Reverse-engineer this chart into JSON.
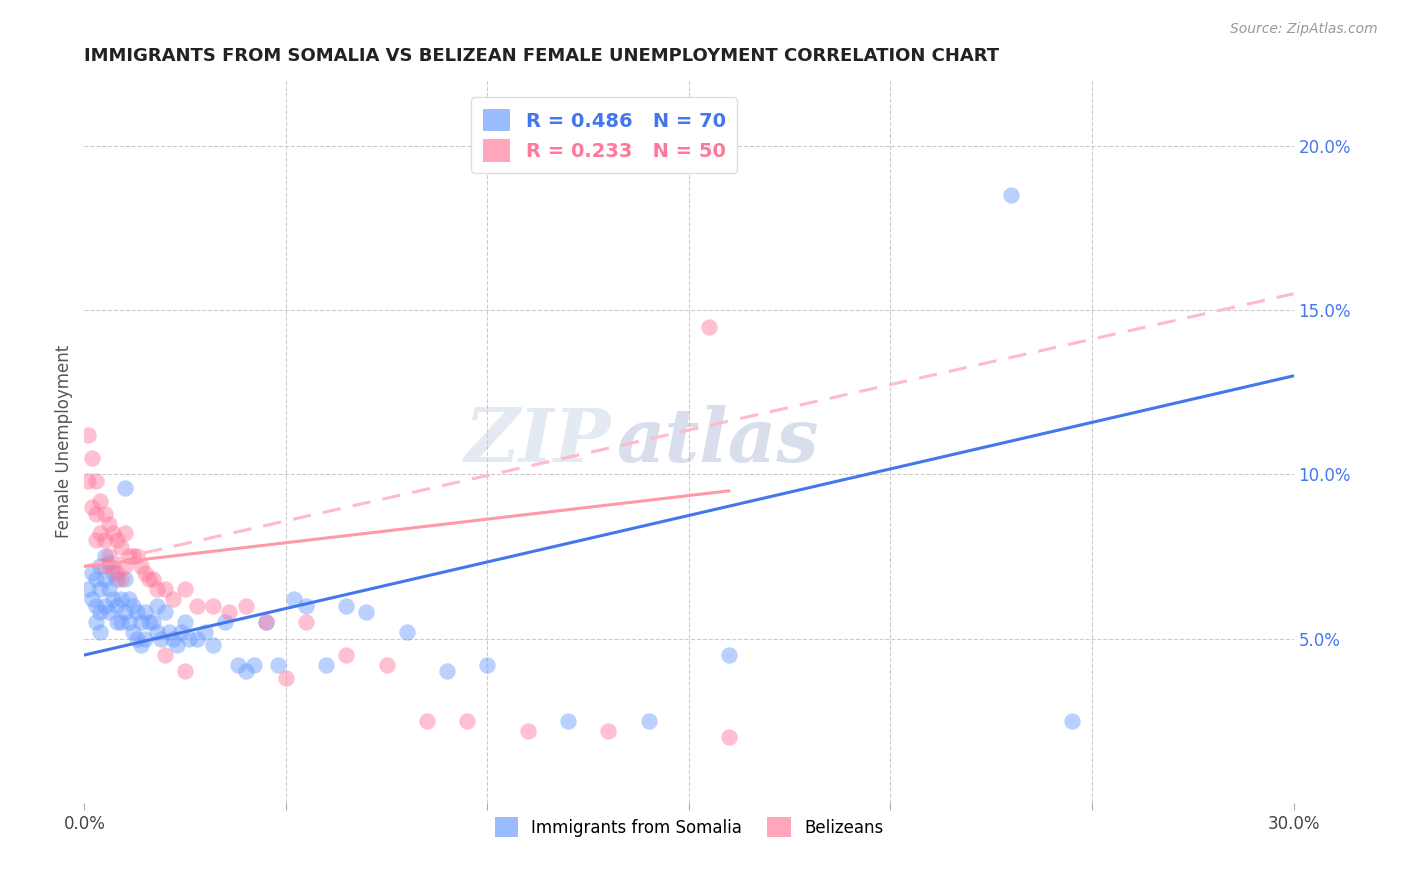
{
  "title": "IMMIGRANTS FROM SOMALIA VS BELIZEAN FEMALE UNEMPLOYMENT CORRELATION CHART",
  "source": "Source: ZipAtlas.com",
  "ylabel": "Female Unemployment",
  "watermark_zip": "ZIP",
  "watermark_atlas": "atlas",
  "xlim": [
    0.0,
    0.3
  ],
  "ylim": [
    0.0,
    0.22
  ],
  "xticks": [
    0.0,
    0.05,
    0.1,
    0.15,
    0.2,
    0.25,
    0.3
  ],
  "xticklabels": [
    "0.0%",
    "",
    "",
    "",
    "",
    "",
    "30.0%"
  ],
  "yticks_right": [
    0.05,
    0.1,
    0.15,
    0.2
  ],
  "ytick_labels_right": [
    "5.0%",
    "10.0%",
    "15.0%",
    "20.0%"
  ],
  "somalia_R": 0.486,
  "somalia_N": 70,
  "belize_R": 0.233,
  "belize_N": 50,
  "somalia_color": "#6699ff",
  "belize_color": "#ff7799",
  "somalia_line_color": "#4477ee",
  "belize_line_color": "#ff99aa",
  "belize_line_dash_color": "#ffbbcc",
  "legend_somalia": "Immigrants from Somalia",
  "legend_belize": "Belizeans",
  "somalia_line_x0": 0.0,
  "somalia_line_y0": 0.045,
  "somalia_line_x1": 0.3,
  "somalia_line_y1": 0.13,
  "belize_line_solid_x0": 0.0,
  "belize_line_solid_y0": 0.072,
  "belize_line_solid_x1": 0.16,
  "belize_line_solid_y1": 0.095,
  "belize_line_dash_x0": 0.0,
  "belize_line_dash_y0": 0.072,
  "belize_line_dash_x1": 0.3,
  "belize_line_dash_y1": 0.155,
  "somalia_x": [
    0.001,
    0.002,
    0.002,
    0.003,
    0.003,
    0.003,
    0.004,
    0.004,
    0.004,
    0.004,
    0.005,
    0.005,
    0.005,
    0.006,
    0.006,
    0.006,
    0.007,
    0.007,
    0.008,
    0.008,
    0.008,
    0.009,
    0.009,
    0.01,
    0.01,
    0.01,
    0.011,
    0.011,
    0.012,
    0.012,
    0.013,
    0.013,
    0.014,
    0.014,
    0.015,
    0.015,
    0.016,
    0.017,
    0.018,
    0.018,
    0.019,
    0.02,
    0.021,
    0.022,
    0.023,
    0.024,
    0.025,
    0.026,
    0.028,
    0.03,
    0.032,
    0.035,
    0.038,
    0.04,
    0.042,
    0.045,
    0.048,
    0.052,
    0.055,
    0.06,
    0.065,
    0.07,
    0.08,
    0.09,
    0.1,
    0.12,
    0.14,
    0.16,
    0.23,
    0.245
  ],
  "somalia_y": [
    0.065,
    0.07,
    0.062,
    0.068,
    0.06,
    0.055,
    0.072,
    0.065,
    0.058,
    0.052,
    0.075,
    0.068,
    0.06,
    0.073,
    0.065,
    0.058,
    0.07,
    0.062,
    0.068,
    0.06,
    0.055,
    0.062,
    0.055,
    0.096,
    0.068,
    0.058,
    0.062,
    0.055,
    0.06,
    0.052,
    0.058,
    0.05,
    0.055,
    0.048,
    0.058,
    0.05,
    0.055,
    0.055,
    0.06,
    0.052,
    0.05,
    0.058,
    0.052,
    0.05,
    0.048,
    0.052,
    0.055,
    0.05,
    0.05,
    0.052,
    0.048,
    0.055,
    0.042,
    0.04,
    0.042,
    0.055,
    0.042,
    0.062,
    0.06,
    0.042,
    0.06,
    0.058,
    0.052,
    0.04,
    0.042,
    0.025,
    0.025,
    0.045,
    0.185,
    0.025
  ],
  "belize_x": [
    0.001,
    0.001,
    0.002,
    0.002,
    0.003,
    0.003,
    0.003,
    0.004,
    0.004,
    0.005,
    0.005,
    0.005,
    0.006,
    0.006,
    0.007,
    0.007,
    0.008,
    0.008,
    0.009,
    0.009,
    0.01,
    0.01,
    0.011,
    0.012,
    0.013,
    0.014,
    0.015,
    0.016,
    0.017,
    0.018,
    0.02,
    0.022,
    0.025,
    0.028,
    0.032,
    0.036,
    0.04,
    0.045,
    0.05,
    0.055,
    0.065,
    0.075,
    0.085,
    0.095,
    0.11,
    0.13,
    0.155,
    0.16,
    0.02,
    0.025
  ],
  "belize_y": [
    0.112,
    0.098,
    0.105,
    0.09,
    0.098,
    0.088,
    0.08,
    0.092,
    0.082,
    0.088,
    0.08,
    0.072,
    0.085,
    0.075,
    0.082,
    0.072,
    0.08,
    0.07,
    0.078,
    0.068,
    0.082,
    0.072,
    0.075,
    0.075,
    0.075,
    0.072,
    0.07,
    0.068,
    0.068,
    0.065,
    0.065,
    0.062,
    0.065,
    0.06,
    0.06,
    0.058,
    0.06,
    0.055,
    0.038,
    0.055,
    0.045,
    0.042,
    0.025,
    0.025,
    0.022,
    0.022,
    0.145,
    0.02,
    0.045,
    0.04
  ]
}
